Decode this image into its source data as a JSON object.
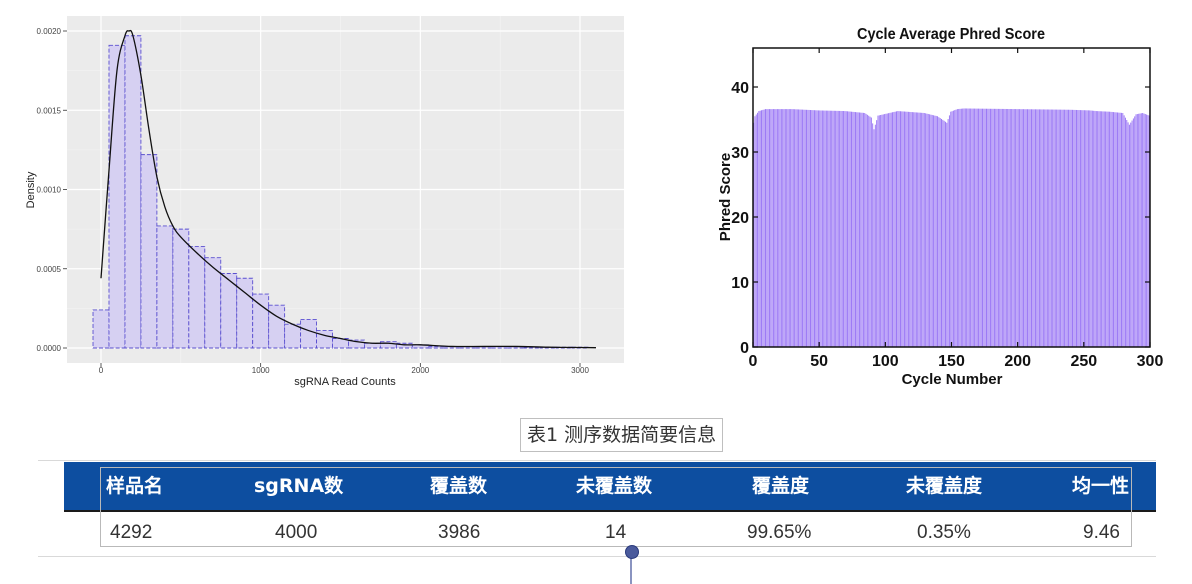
{
  "colors": {
    "hist_fill": "#d6d0f2",
    "hist_stroke": "#5a4fcf",
    "panel_bg": "#ebebeb",
    "bar_fill": "#9b78f5",
    "table_header": "#0d4ea0"
  },
  "chart_data": [
    {
      "type": "bar",
      "subtype": "histogram-with-density",
      "title": "",
      "xlabel": "sgRNA Read Counts",
      "ylabel": "Density",
      "xlim": [
        -50,
        3150
      ],
      "ylim": [
        0,
        0.00213
      ],
      "xticks": [
        "0",
        "1000",
        "2000",
        "3000"
      ],
      "yticks": [
        "0.0000",
        "0.0005",
        "0.0010",
        "0.0015",
        "0.0020"
      ],
      "grid": true,
      "bin_width": 100,
      "bins": [
        {
          "x0": -50,
          "x1": 50,
          "density": 0.00024
        },
        {
          "x0": 50,
          "x1": 150,
          "density": 0.00191
        },
        {
          "x0": 150,
          "x1": 250,
          "density": 0.00197
        },
        {
          "x0": 250,
          "x1": 350,
          "density": 0.00122
        },
        {
          "x0": 350,
          "x1": 450,
          "density": 0.00077
        },
        {
          "x0": 450,
          "x1": 550,
          "density": 0.00075
        },
        {
          "x0": 550,
          "x1": 650,
          "density": 0.00064
        },
        {
          "x0": 650,
          "x1": 750,
          "density": 0.00057
        },
        {
          "x0": 750,
          "x1": 850,
          "density": 0.00047
        },
        {
          "x0": 850,
          "x1": 950,
          "density": 0.00044
        },
        {
          "x0": 950,
          "x1": 1050,
          "density": 0.00034
        },
        {
          "x0": 1050,
          "x1": 1150,
          "density": 0.00027
        },
        {
          "x0": 1150,
          "x1": 1250,
          "density": 0.00015
        },
        {
          "x0": 1250,
          "x1": 1350,
          "density": 0.00018
        },
        {
          "x0": 1350,
          "x1": 1450,
          "density": 0.00011
        },
        {
          "x0": 1450,
          "x1": 1550,
          "density": 6e-05
        },
        {
          "x0": 1550,
          "x1": 1650,
          "density": 5e-05
        },
        {
          "x0": 1650,
          "x1": 1750,
          "density": 3e-05
        },
        {
          "x0": 1750,
          "x1": 1850,
          "density": 4e-05
        },
        {
          "x0": 1850,
          "x1": 1950,
          "density": 3e-05
        },
        {
          "x0": 1950,
          "x1": 2050,
          "density": 2e-05
        },
        {
          "x0": 2050,
          "x1": 2150,
          "density": 1e-05
        },
        {
          "x0": 2150,
          "x1": 2250,
          "density": 1e-05
        },
        {
          "x0": 2250,
          "x1": 2350,
          "density": 1e-05
        },
        {
          "x0": 2350,
          "x1": 2450,
          "density": 1e-05
        },
        {
          "x0": 2450,
          "x1": 2550,
          "density": 1e-05
        },
        {
          "x0": 2550,
          "x1": 2650,
          "density": 1e-05
        },
        {
          "x0": 2650,
          "x1": 2750,
          "density": 5e-06
        },
        {
          "x0": 2750,
          "x1": 2850,
          "density": 5e-06
        },
        {
          "x0": 2850,
          "x1": 2950,
          "density": 5e-06
        },
        {
          "x0": 2950,
          "x1": 3050,
          "density": 5e-06
        }
      ],
      "density_curve": {
        "x": [
          0,
          50,
          100,
          150,
          175,
          200,
          250,
          300,
          350,
          400,
          450,
          500,
          600,
          700,
          800,
          900,
          1000,
          1100,
          1200,
          1300,
          1400,
          1500,
          1600,
          1700,
          1800,
          1900,
          2000,
          2200,
          2400,
          2600,
          2800,
          3000,
          3100
        ],
        "y": [
          0.00044,
          0.00112,
          0.00175,
          0.00197,
          0.002,
          0.00197,
          0.00172,
          0.00138,
          0.00108,
          0.00089,
          0.00077,
          0.0007,
          0.0006,
          0.00051,
          0.00043,
          0.00035,
          0.00027,
          0.0002,
          0.00015,
          0.00011,
          8e-05,
          6e-05,
          4e-05,
          3e-05,
          3e-05,
          2e-05,
          2e-05,
          1e-05,
          1e-05,
          1e-05,
          5e-06,
          3e-06,
          2e-06
        ]
      }
    },
    {
      "type": "bar",
      "title": "Cycle Average Phred Score",
      "xlabel": "Cycle Number",
      "ylabel": "Phred Score",
      "xlim": [
        0,
        300
      ],
      "ylim": [
        0,
        46
      ],
      "xticks": [
        "0",
        "50",
        "100",
        "150",
        "200",
        "250",
        "300"
      ],
      "yticks": [
        "0",
        "10",
        "20",
        "30",
        "40"
      ],
      "grid": false,
      "series": [
        {
          "x_start": 1,
          "x_end": 300,
          "value_knots": {
            "cycle": [
              1,
              2,
              5,
              10,
              30,
              50,
              70,
              85,
              90,
              92,
              95,
              110,
              130,
              140,
              145,
              147,
              150,
              155,
              160,
              200,
              240,
              255,
              260,
              270,
              280,
              285,
              290,
              295,
              300
            ],
            "score": [
              34.5,
              35.5,
              36.3,
              36.6,
              36.6,
              36.4,
              36.3,
              36.0,
              35.3,
              33.5,
              35.6,
              36.3,
              36.0,
              35.5,
              34.8,
              34.5,
              36.2,
              36.6,
              36.7,
              36.6,
              36.5,
              36.4,
              36.3,
              36.2,
              36.0,
              34.2,
              35.8,
              36.0,
              35.6
            ]
          }
        }
      ]
    }
  ],
  "table": {
    "caption": "表1 测序数据简要信息",
    "headers": [
      "样品名",
      "sgRNA数",
      "覆盖数",
      "未覆盖数",
      "覆盖度",
      "未覆盖度",
      "均一性"
    ],
    "row": [
      "4292",
      "4000",
      "3986",
      "14",
      "99.65%",
      "0.35%",
      "9.46"
    ]
  }
}
